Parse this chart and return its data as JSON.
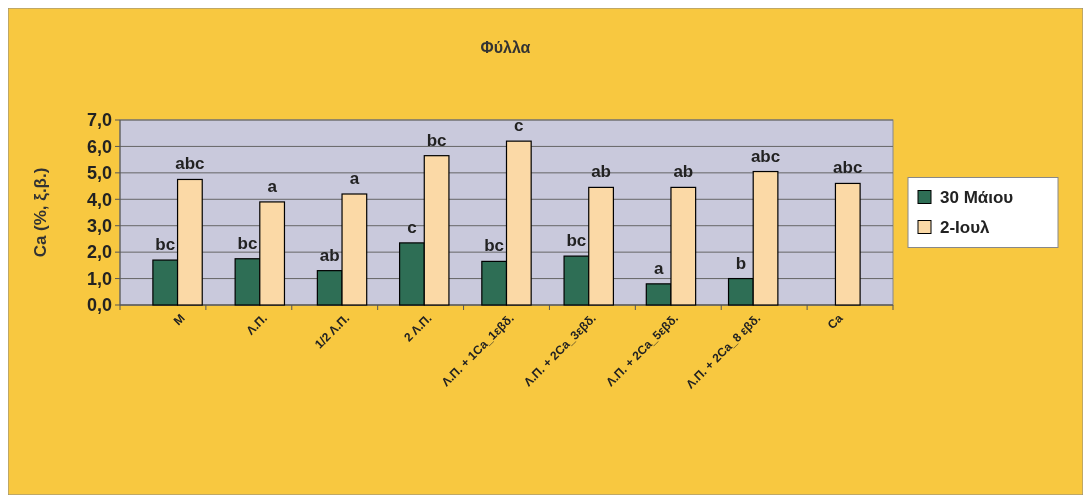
{
  "chart_data": {
    "type": "bar",
    "title": "Φύλλα",
    "ylabel": "Ca (%, ξ.β.)",
    "categories": [
      "Μ",
      "Λ.Π.",
      "1/2 Λ.Π.",
      "2 Λ.Π.",
      "Λ.Π. + 1Ca_1εβδ.",
      "Λ.Π. + 2Ca_3εβδ.",
      "Λ.Π. + 2Ca_5εβδ.",
      "Λ.Π. + 2Ca_8 εβδ.",
      "Ca"
    ],
    "series": [
      {
        "name": "30 Μάιου",
        "color": "#2e6e55",
        "values": [
          1.7,
          1.75,
          1.3,
          2.35,
          1.65,
          1.85,
          0.8,
          1.0,
          null
        ],
        "value_labels": [
          "bc",
          "bc",
          "ab",
          "c",
          "bc",
          "bc",
          "a",
          "b",
          null
        ]
      },
      {
        "name": "2-Ιουλ",
        "color": "#fbd9a6",
        "values": [
          4.75,
          3.9,
          4.2,
          5.65,
          6.2,
          4.45,
          4.45,
          5.05,
          4.6
        ],
        "value_labels": [
          "abc",
          "a",
          "a",
          "bc",
          "c",
          "ab",
          "ab",
          "abc",
          "abc"
        ]
      }
    ],
    "ylim": [
      0,
      7
    ],
    "yticks": [
      {
        "value": 0,
        "label": "0,0"
      },
      {
        "value": 1,
        "label": "1,0"
      },
      {
        "value": 2,
        "label": "2,0"
      },
      {
        "value": 3,
        "label": "3,0"
      },
      {
        "value": 4,
        "label": "4,0"
      },
      {
        "value": 5,
        "label": "5,0"
      },
      {
        "value": 6,
        "label": "6,0"
      },
      {
        "value": 7,
        "label": "7,0"
      }
    ],
    "grid": "y",
    "legend": "right"
  }
}
